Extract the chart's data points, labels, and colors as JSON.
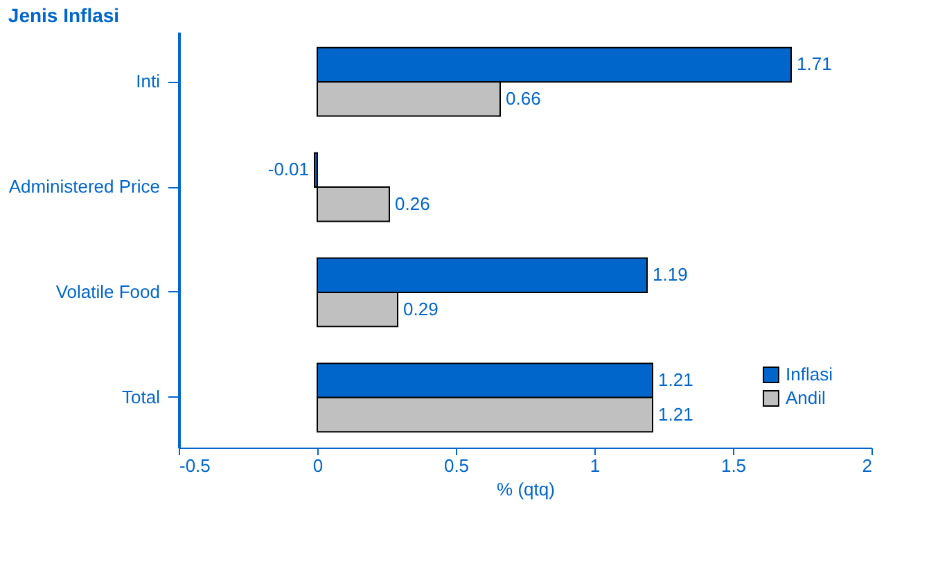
{
  "chart_data": {
    "type": "bar",
    "orientation": "horizontal",
    "title": "Jenis Inflasi",
    "xlabel": "% (qtq)",
    "categories": [
      "Inti",
      "Administered Price",
      "Volatile Food",
      "Total"
    ],
    "series": [
      {
        "name": "Inflasi",
        "color": "#0066cc",
        "values": [
          1.71,
          -0.01,
          1.19,
          1.21
        ]
      },
      {
        "name": "Andil",
        "color": "#c0c0c0",
        "values": [
          0.66,
          0.26,
          0.29,
          1.21
        ]
      }
    ],
    "xlim": [
      -0.5,
      2
    ],
    "xticks": [
      -0.5,
      0,
      0.5,
      1,
      1.5,
      2
    ],
    "data_labels": true,
    "legend": "bottom right",
    "grid": false
  }
}
